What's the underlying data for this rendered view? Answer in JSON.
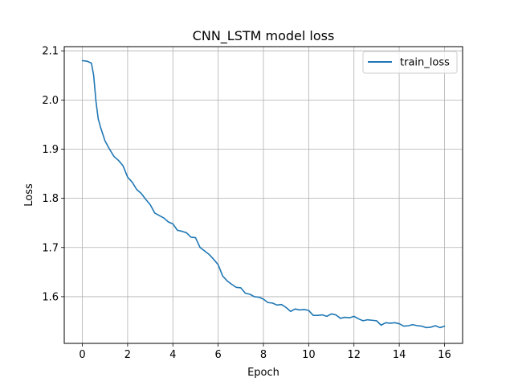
{
  "chart_data": {
    "type": "line",
    "title": "CNN_LSTM model loss",
    "xlabel": "Epoch",
    "ylabel": "Loss",
    "xlim": [
      -0.8,
      16.8
    ],
    "ylim": [
      1.505,
      2.1085
    ],
    "xticks": [
      0,
      2,
      4,
      6,
      8,
      10,
      12,
      14,
      16
    ],
    "yticks": [
      1.6,
      1.7,
      1.8,
      1.9,
      2.0,
      2.1
    ],
    "xtick_labels": [
      "0",
      "2",
      "4",
      "6",
      "8",
      "10",
      "12",
      "14",
      "16"
    ],
    "ytick_labels": [
      "1.6",
      "1.7",
      "1.8",
      "1.9",
      "2.0",
      "2.1"
    ],
    "grid": true,
    "legend_position": "top-right",
    "colors": {
      "train_loss": "#1f77b4"
    },
    "series": [
      {
        "name": "train_loss",
        "x": [
          0,
          0.2,
          0.4,
          0.5,
          0.6,
          0.7,
          0.8,
          1.0,
          1.2,
          1.4,
          1.6,
          1.8,
          2.0,
          2.2,
          2.4,
          2.6,
          2.8,
          3.0,
          3.2,
          3.4,
          3.6,
          3.8,
          4.0,
          4.2,
          4.4,
          4.6,
          4.8,
          5.0,
          5.2,
          5.4,
          5.6,
          5.8,
          6.0,
          6.2,
          6.4,
          6.6,
          6.8,
          7.0,
          7.2,
          7.4,
          7.6,
          7.8,
          8.0,
          8.2,
          8.4,
          8.6,
          8.8,
          9.0,
          9.2,
          9.4,
          9.6,
          9.8,
          10.0,
          10.2,
          10.4,
          10.6,
          10.8,
          11.0,
          11.2,
          11.4,
          11.6,
          11.8,
          12.0,
          12.2,
          12.4,
          12.6,
          12.8,
          13.0,
          13.2,
          13.4,
          13.6,
          13.8,
          14.0,
          14.2,
          14.4,
          14.6,
          14.8,
          15.0,
          15.2,
          15.4,
          15.6,
          15.8,
          16.0
        ],
        "y": [
          2.08,
          2.079,
          2.075,
          2.05,
          1.998,
          1.962,
          1.945,
          1.917,
          1.9,
          1.885,
          1.877,
          1.866,
          1.843,
          1.833,
          1.818,
          1.81,
          1.798,
          1.787,
          1.77,
          1.765,
          1.76,
          1.752,
          1.748,
          1.735,
          1.733,
          1.73,
          1.721,
          1.72,
          1.7,
          1.693,
          1.686,
          1.676,
          1.665,
          1.642,
          1.632,
          1.625,
          1.619,
          1.618,
          1.607,
          1.605,
          1.6,
          1.599,
          1.595,
          1.588,
          1.587,
          1.583,
          1.584,
          1.578,
          1.57,
          1.575,
          1.573,
          1.574,
          1.572,
          1.562,
          1.562,
          1.563,
          1.56,
          1.565,
          1.563,
          1.556,
          1.558,
          1.557,
          1.56,
          1.555,
          1.551,
          1.553,
          1.552,
          1.551,
          1.542,
          1.547,
          1.546,
          1.547,
          1.545,
          1.54,
          1.541,
          1.543,
          1.541,
          1.54,
          1.537,
          1.538,
          1.541,
          1.537,
          1.54
        ]
      }
    ]
  }
}
